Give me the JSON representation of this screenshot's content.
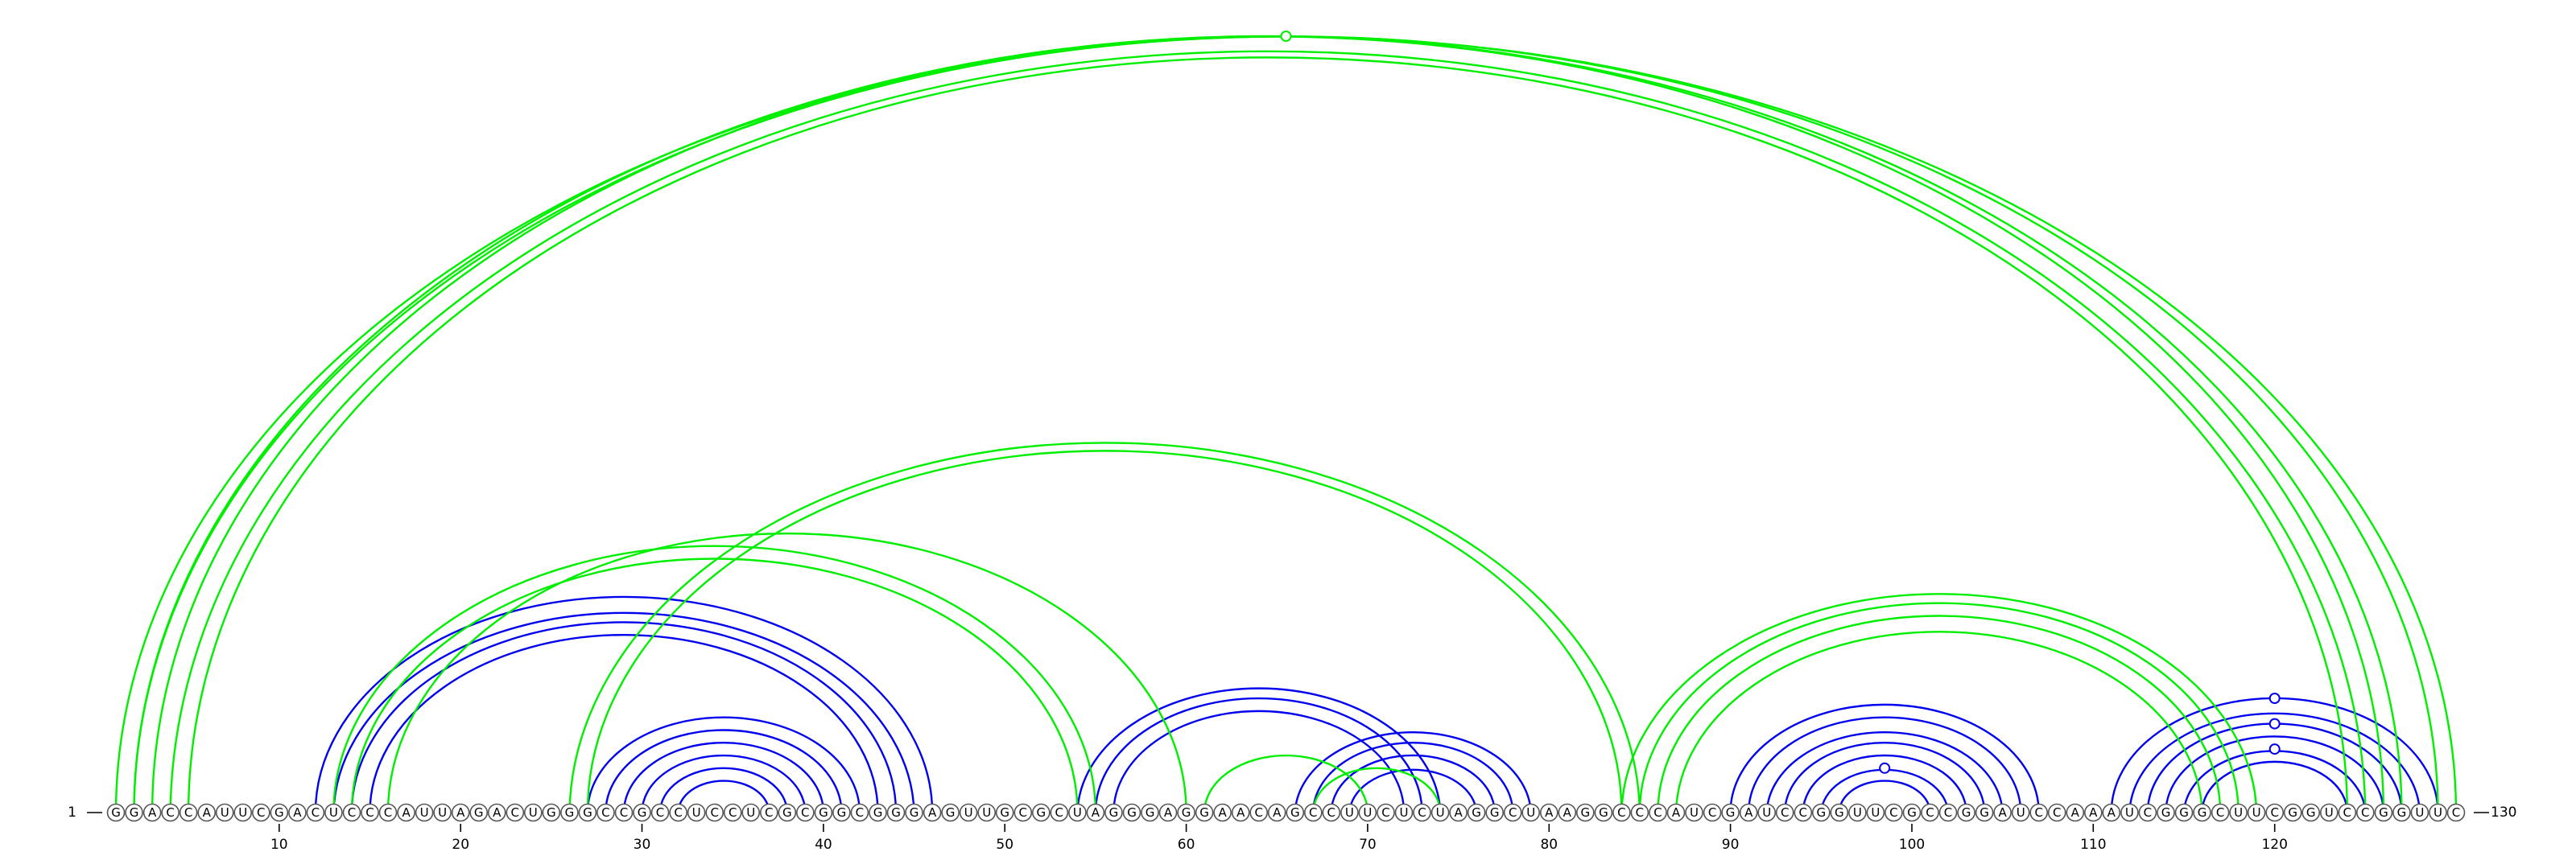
{
  "sequence": "GGACCAUUCGACUCCCAUUAGACUGGGCCGCCUCCUCGCGGCGGGAGUUGCGCUAGGGAGGAACAGCCUUCUCUAGGCUAAGGCCCAUCGAUCCGGUUCGCCGGAUCCAAAUCGGGCUUCGGUCCGGUUC",
  "labels": {
    "start": "1",
    "end": "130",
    "ticks": [
      "10",
      "20",
      "30",
      "40",
      "50",
      "60",
      "70",
      "80",
      "90",
      "100",
      "110",
      "120"
    ]
  },
  "colors": {
    "blue": "#0000ee",
    "green": "#00ee00"
  },
  "arc_groups": [
    {
      "color": "blue",
      "spans": [
        [
          12,
          46
        ],
        [
          13,
          45
        ],
        [
          14,
          44
        ],
        [
          15,
          43
        ]
      ]
    },
    {
      "color": "blue",
      "spans": [
        [
          27,
          42
        ],
        [
          28,
          41
        ],
        [
          29,
          40
        ],
        [
          30,
          39
        ],
        [
          31,
          38
        ],
        [
          32,
          37
        ]
      ]
    },
    {
      "color": "blue",
      "spans": [
        [
          54,
          74
        ],
        [
          55,
          73
        ],
        [
          56,
          72
        ]
      ]
    },
    {
      "color": "blue",
      "spans": [
        [
          66,
          79
        ],
        [
          67,
          78
        ],
        [
          68,
          77
        ],
        [
          69,
          76
        ]
      ]
    },
    {
      "color": "blue",
      "spans": [
        [
          90,
          107
        ],
        [
          91,
          106
        ],
        [
          92,
          105
        ],
        [
          93,
          104
        ],
        [
          94,
          103
        ],
        [
          95,
          102
        ],
        [
          96,
          101
        ]
      ]
    },
    {
      "color": "blue",
      "spans": [
        [
          111,
          129
        ],
        [
          112,
          128
        ],
        [
          113,
          127
        ],
        [
          114,
          126
        ],
        [
          115,
          125
        ],
        [
          116,
          124
        ]
      ]
    },
    {
      "color": "green",
      "spans": [
        [
          2,
          127
        ],
        [
          3,
          126
        ],
        [
          4,
          125
        ],
        [
          5,
          124
        ]
      ]
    },
    {
      "color": "green",
      "spans": [
        [
          1,
          130
        ],
        [
          2,
          129
        ]
      ]
    },
    {
      "color": "green",
      "spans": [
        [
          13,
          55
        ],
        [
          14,
          54
        ]
      ]
    },
    {
      "color": "green",
      "spans": [
        [
          16,
          60
        ]
      ]
    },
    {
      "color": "green",
      "spans": [
        [
          26,
          85
        ],
        [
          27,
          84
        ]
      ]
    },
    {
      "color": "green",
      "spans": [
        [
          61,
          70
        ]
      ]
    },
    {
      "color": "green",
      "spans": [
        [
          67,
          74
        ]
      ]
    },
    {
      "color": "green",
      "spans": [
        [
          84,
          119
        ],
        [
          85,
          118
        ],
        [
          86,
          117
        ],
        [
          87,
          116
        ]
      ]
    }
  ]
}
